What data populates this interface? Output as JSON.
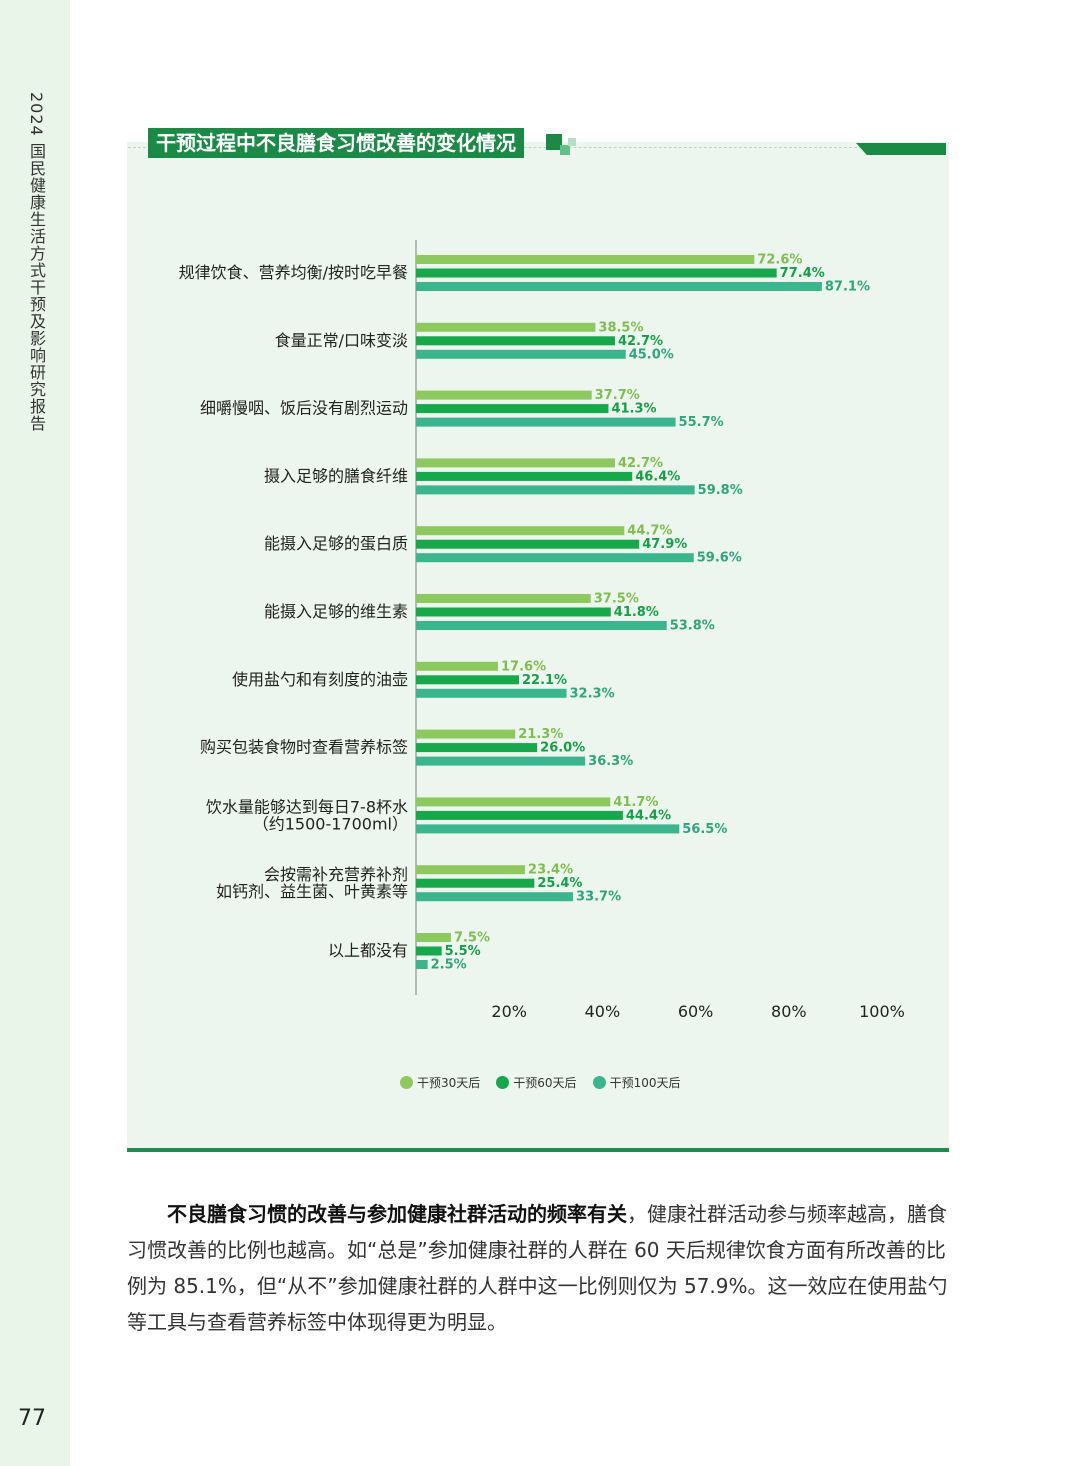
{
  "side": {
    "title": "2024 国民健康生活方式干预及影响研究报告",
    "page_number": "77"
  },
  "colors": {
    "series30": "#8dc95f",
    "series60": "#16a84a",
    "series100": "#3bb58e",
    "title_bg": "#1a8a46",
    "panel_bg": "#edf6ee"
  },
  "chart_data": {
    "type": "bar",
    "orientation": "horizontal",
    "title": "干预过程中不良膳食习惯改善的变化情况",
    "categories": [
      [
        "规律饮食、营养均衡/按时吃早餐"
      ],
      [
        "食量正常/口味变淡"
      ],
      [
        "细嚼慢咽、饭后没有剧烈运动"
      ],
      [
        "摄入足够的膳食纤维"
      ],
      [
        "能摄入足够的蛋白质"
      ],
      [
        "能摄入足够的维生素"
      ],
      [
        "使用盐勺和有刻度的油壶"
      ],
      [
        "购买包装食物时查看营养标签"
      ],
      [
        "饮水量能够达到每日7-8杯水",
        "（约1500-1700ml）"
      ],
      [
        "会按需补充营养补剂",
        "如钙剂、益生菌、叶黄素等"
      ],
      [
        "以上都没有"
      ]
    ],
    "series": [
      {
        "name": "干预30天后",
        "values": [
          72.6,
          38.5,
          37.7,
          42.7,
          44.7,
          37.5,
          17.6,
          21.3,
          41.7,
          23.4,
          7.5
        ]
      },
      {
        "name": "干预60天后",
        "values": [
          77.4,
          42.7,
          41.3,
          46.4,
          47.9,
          41.8,
          22.1,
          26.0,
          44.4,
          25.4,
          5.5
        ]
      },
      {
        "name": "干预100天后",
        "values": [
          87.1,
          45.0,
          55.7,
          59.8,
          59.6,
          53.8,
          32.3,
          36.3,
          56.5,
          33.7,
          2.5
        ]
      }
    ],
    "xlim": [
      0,
      100
    ],
    "xticks": [
      "20%",
      "40%",
      "60%",
      "80%",
      "100%"
    ],
    "value_suffix": "%",
    "grid": false,
    "legend_position": "bottom-center"
  },
  "paragraph": {
    "bold": "不良膳食习惯的改善与参加健康社群活动的频率有关",
    "text": "，健康社群活动参与频率越高，膳食习惯改善的比例也越高。如“总是”参加健康社群的人群在 60 天后规律饮食方面有所改善的比例为 85.1%，但“从不”参加健康社群的人群中这一比例则仅为 57.9%。这一效应在使用盐勺等工具与查看营养标签中体现得更为明显。"
  }
}
